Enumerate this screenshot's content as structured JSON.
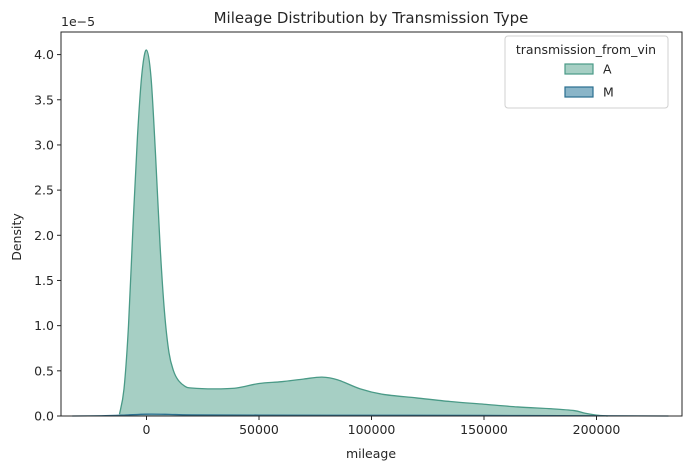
{
  "chart_data": {
    "type": "area",
    "title": "Mileage Distribution by Transmission Type",
    "xlabel": "mileage",
    "ylabel": "Density",
    "y_offset_text": "1e−5",
    "xlim": [
      -38000,
      238000
    ],
    "ylim": [
      0,
      4.25
    ],
    "x_ticks": [
      0,
      50000,
      100000,
      150000,
      200000
    ],
    "x_tick_labels": [
      "0",
      "50000",
      "100000",
      "150000",
      "200000"
    ],
    "y_ticks": [
      0,
      0.5,
      1.0,
      1.5,
      2.0,
      2.5,
      3.0,
      3.5,
      4.0
    ],
    "y_tick_labels": [
      "0.0",
      "0.5",
      "1.0",
      "1.5",
      "2.0",
      "2.5",
      "3.0",
      "3.5",
      "4.0"
    ],
    "grid": false,
    "legend": {
      "title": "transmission_from_vin",
      "placement": "top-right"
    },
    "series": [
      {
        "name": "A",
        "fill_color": "#a6cfc4",
        "line_color": "#4a9a87",
        "x": [
          -12000,
          -10000,
          -8000,
          -6000,
          -4000,
          -2000,
          0,
          2000,
          4000,
          6000,
          8000,
          10000,
          12000,
          14000,
          17000,
          20000,
          30000,
          40000,
          50000,
          60000,
          70000,
          78000,
          85000,
          95000,
          105000,
          120000,
          135000,
          150000,
          165000,
          180000,
          190000,
          195000,
          200000,
          205000
        ],
        "y": [
          0.02,
          0.3,
          1.0,
          2.1,
          3.1,
          3.8,
          4.05,
          3.75,
          2.9,
          1.9,
          1.15,
          0.7,
          0.5,
          0.4,
          0.33,
          0.31,
          0.3,
          0.31,
          0.36,
          0.38,
          0.41,
          0.43,
          0.4,
          0.3,
          0.24,
          0.2,
          0.16,
          0.13,
          0.1,
          0.08,
          0.06,
          0.03,
          0.01,
          0.0
        ]
      },
      {
        "name": "M",
        "fill_color": "#8ab5c8",
        "line_color": "#2a6f8f",
        "x": [
          -33000,
          -20000,
          -10000,
          0,
          10000,
          20000,
          50000,
          100000,
          150000,
          200000,
          232000
        ],
        "y": [
          0.0,
          0.003,
          0.01,
          0.02,
          0.018,
          0.012,
          0.01,
          0.008,
          0.006,
          0.003,
          0.0
        ]
      }
    ]
  }
}
